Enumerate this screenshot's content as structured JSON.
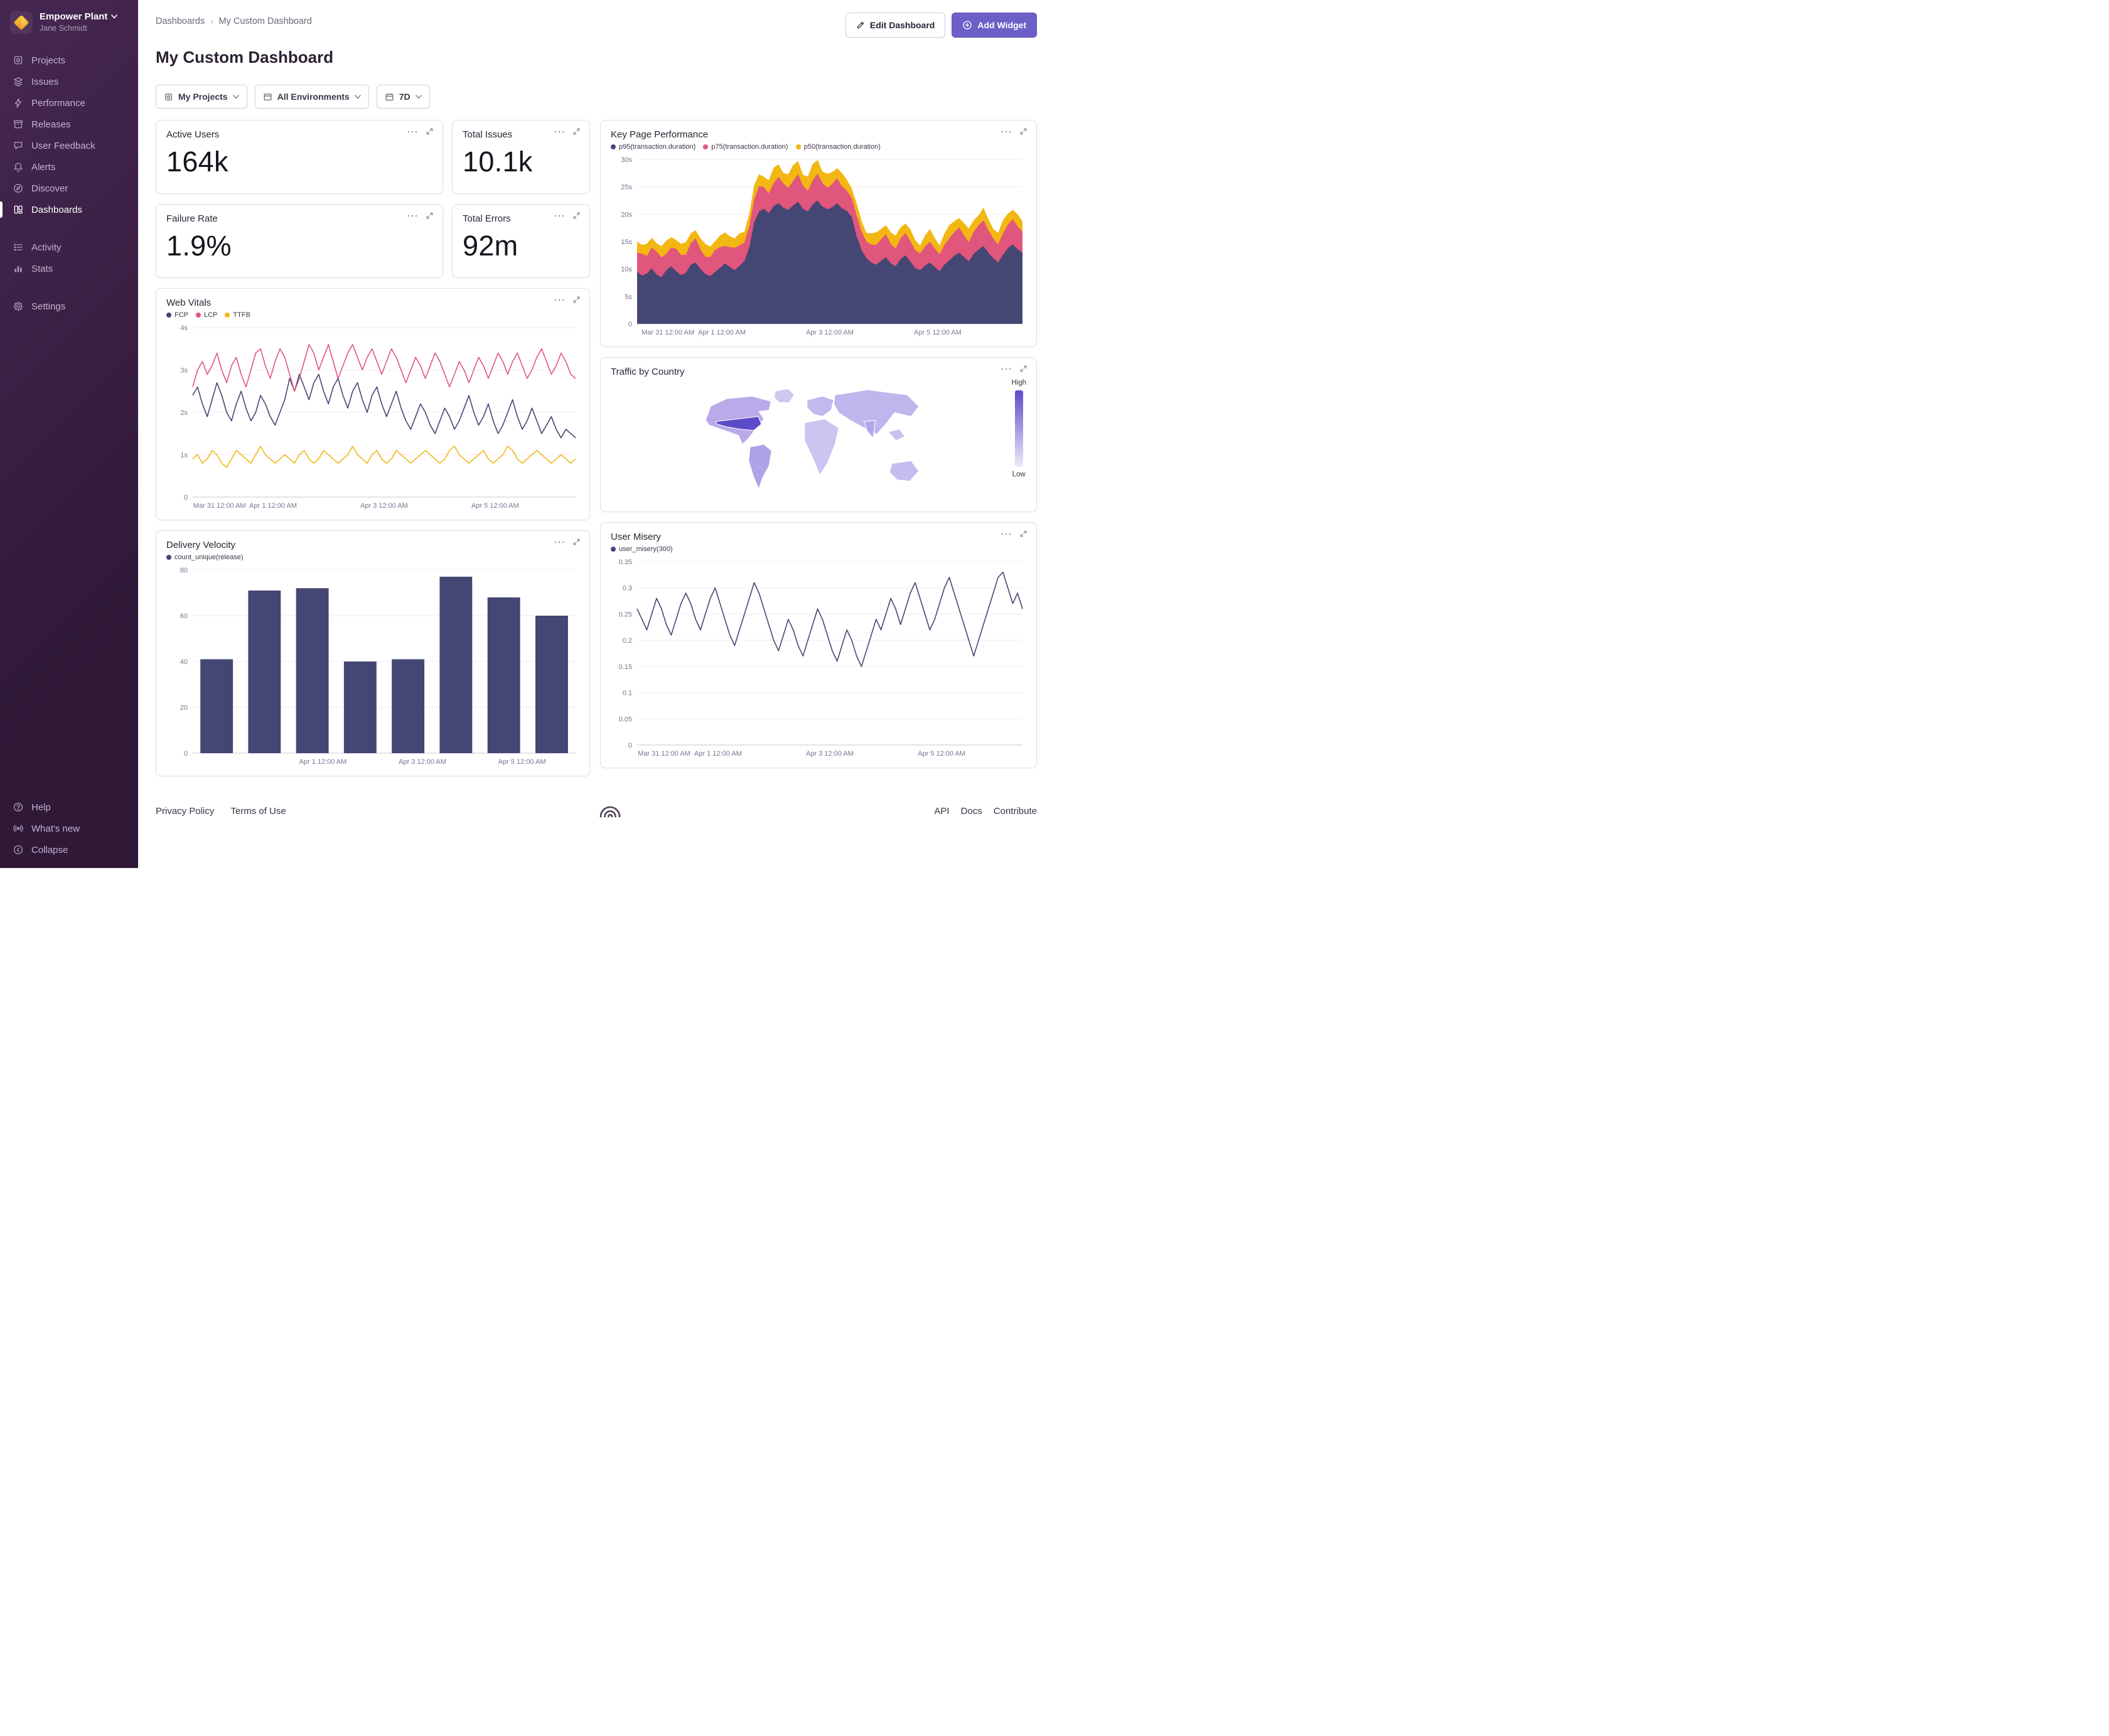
{
  "org": {
    "name": "Empower Plant",
    "user": "Jane Schmidt"
  },
  "sidebar": {
    "items": [
      {
        "label": "Projects"
      },
      {
        "label": "Issues"
      },
      {
        "label": "Performance"
      },
      {
        "label": "Releases"
      },
      {
        "label": "User Feedback"
      },
      {
        "label": "Alerts"
      },
      {
        "label": "Discover"
      },
      {
        "label": "Dashboards"
      },
      {
        "label": "Activity"
      },
      {
        "label": "Stats"
      },
      {
        "label": "Settings"
      }
    ],
    "footer_items": [
      {
        "label": "Help"
      },
      {
        "label": "What's new"
      },
      {
        "label": "Collapse"
      }
    ]
  },
  "header": {
    "breadcrumb_root": "Dashboards",
    "breadcrumb_current": "My Custom Dashboard",
    "title": "My Custom Dashboard",
    "edit_button": "Edit Dashboard",
    "add_widget_button": "Add Widget"
  },
  "filters": {
    "projects": "My Projects",
    "environments": "All Environments",
    "period": "7D"
  },
  "stats": [
    {
      "title": "Active Users",
      "value": "164k"
    },
    {
      "title": "Total Issues",
      "value": "10.1k"
    },
    {
      "title": "Failure Rate",
      "value": "1.9%"
    },
    {
      "title": "Total Errors",
      "value": "92m"
    }
  ],
  "footer": {
    "privacy": "Privacy Policy",
    "terms": "Terms of Use",
    "api": "API",
    "docs": "Docs",
    "contribute": "Contribute"
  },
  "colors": {
    "accent": "#6c5fc7",
    "navy": "#444674",
    "pink": "#e1567c",
    "yellow": "#f2b712"
  },
  "chart_data": [
    {
      "id": "key_page_performance",
      "type": "area-stacked",
      "title": "Key Page Performance",
      "ylim": [
        0,
        30
      ],
      "yticks": [
        {
          "v": 0,
          "label": "0"
        },
        {
          "v": 5,
          "label": "5s"
        },
        {
          "v": 10,
          "label": "10s"
        },
        {
          "v": 15,
          "label": "15s"
        },
        {
          "v": 20,
          "label": "20s"
        },
        {
          "v": 25,
          "label": "25s"
        },
        {
          "v": 30,
          "label": "30s"
        }
      ],
      "xticks": [
        {
          "pos": 0.08,
          "label": "Mar 31 12:00 AM"
        },
        {
          "pos": 0.22,
          "label": "Apr 1 12:00 AM"
        },
        {
          "pos": 0.5,
          "label": "Apr 3 12:00 AM"
        },
        {
          "pos": 0.78,
          "label": "Apr 5 12:00 AM"
        }
      ],
      "series": [
        {
          "name": "p95(transaction.duration)",
          "color": "#444674",
          "values": [
            9.5,
            8.8,
            9.2,
            10.1,
            9.0,
            8.5,
            9.8,
            10.5,
            9.6,
            8.9,
            9.3,
            10.8,
            11.2,
            10.0,
            9.1,
            8.7,
            9.5,
            10.2,
            11.0,
            10.4,
            9.8,
            10.6,
            11.5,
            14.0,
            18.5,
            20.5,
            21.0,
            20.2,
            21.5,
            22.0,
            21.2,
            20.8,
            21.6,
            22.3,
            21.0,
            20.5,
            21.8,
            22.5,
            21.4,
            20.9,
            21.3,
            22.0,
            21.1,
            20.6,
            19.5,
            16.0,
            13.5,
            12.0,
            11.2,
            10.8,
            11.5,
            12.2,
            11.0,
            10.5,
            11.8,
            12.5,
            11.4,
            10.2,
            9.8,
            10.6,
            11.2,
            10.4,
            9.6,
            10.8,
            11.6,
            12.4,
            13.0,
            12.2,
            11.4,
            12.8,
            13.6,
            14.2,
            13.0,
            12.0,
            11.2,
            12.6,
            13.8,
            14.5,
            13.6,
            13.0
          ]
        },
        {
          "name": "p75(transaction.duration)",
          "color": "#e1567c",
          "values": [
            3.5,
            4.0,
            3.2,
            3.8,
            4.2,
            3.6,
            3.0,
            3.4,
            4.1,
            3.7,
            3.3,
            3.9,
            4.4,
            3.6,
            3.1,
            3.5,
            4.0,
            3.8,
            3.2,
            3.6,
            4.1,
            3.7,
            3.4,
            3.8,
            4.2,
            4.6,
            4.0,
            3.6,
            4.2,
            4.8,
            4.4,
            4.0,
            4.5,
            5.0,
            4.2,
            3.8,
            4.4,
            4.9,
            4.3,
            3.9,
            4.2,
            4.6,
            4.0,
            3.7,
            3.5,
            3.8,
            3.4,
            3.0,
            3.3,
            3.6,
            3.9,
            4.2,
            3.6,
            3.2,
            3.8,
            4.1,
            3.7,
            3.3,
            3.0,
            3.5,
            3.8,
            3.4,
            3.1,
            3.6,
            4.0,
            4.3,
            4.6,
            4.0,
            3.5,
            4.0,
            4.4,
            4.7,
            4.1,
            3.6,
            3.3,
            3.9,
            4.3,
            4.6,
            4.2,
            3.8
          ]
        },
        {
          "name": "p50(transaction.duration)",
          "color": "#f2b712",
          "values": [
            2.0,
            1.6,
            2.2,
            1.8,
            1.5,
            2.1,
            2.4,
            1.9,
            1.6,
            2.0,
            2.3,
            1.8,
            1.5,
            2.0,
            2.4,
            1.9,
            1.6,
            2.1,
            2.5,
            2.0,
            1.7,
            2.2,
            1.9,
            2.3,
            2.6,
            2.2,
            1.8,
            2.4,
            2.8,
            2.3,
            1.9,
            2.5,
            2.9,
            2.4,
            2.0,
            2.6,
            3.0,
            2.5,
            2.1,
            2.6,
            2.2,
            1.8,
            2.4,
            2.0,
            1.7,
            2.2,
            1.9,
            1.6,
            2.0,
            2.3,
            1.9,
            1.6,
            2.1,
            2.4,
            2.0,
            1.7,
            2.2,
            1.8,
            1.5,
            2.0,
            2.3,
            1.9,
            1.6,
            2.1,
            2.4,
            2.0,
            1.7,
            2.2,
            2.5,
            2.1,
            1.8,
            2.3,
            2.0,
            1.7,
            2.1,
            2.4,
            2.0,
            1.7,
            2.2,
            1.9
          ]
        }
      ]
    },
    {
      "id": "web_vitals",
      "type": "line",
      "title": "Web Vitals",
      "ylim": [
        0,
        4
      ],
      "yticks": [
        {
          "v": 0,
          "label": "0"
        },
        {
          "v": 1,
          "label": "1s"
        },
        {
          "v": 2,
          "label": "2s"
        },
        {
          "v": 3,
          "label": "3s"
        },
        {
          "v": 4,
          "label": "4s"
        }
      ],
      "xticks": [
        {
          "pos": 0.07,
          "label": "Mar 31 12:00 AM"
        },
        {
          "pos": 0.21,
          "label": "Apr 1 12:00 AM"
        },
        {
          "pos": 0.5,
          "label": "Apr 3 12:00 AM"
        },
        {
          "pos": 0.79,
          "label": "Apr 5 12:00 AM"
        }
      ],
      "series": [
        {
          "name": "FCP",
          "color": "#444674",
          "values": [
            2.4,
            2.6,
            2.2,
            1.9,
            2.3,
            2.7,
            2.4,
            2.0,
            1.8,
            2.2,
            2.5,
            2.1,
            1.8,
            2.0,
            2.4,
            2.2,
            1.9,
            1.7,
            2.0,
            2.3,
            2.8,
            2.5,
            2.9,
            2.6,
            2.3,
            2.7,
            2.9,
            2.5,
            2.2,
            2.6,
            2.8,
            2.4,
            2.1,
            2.5,
            2.7,
            2.3,
            2.0,
            2.4,
            2.6,
            2.2,
            1.9,
            2.2,
            2.5,
            2.1,
            1.8,
            1.6,
            1.9,
            2.2,
            2.0,
            1.7,
            1.5,
            1.8,
            2.1,
            1.9,
            1.6,
            1.8,
            2.1,
            2.4,
            2.0,
            1.7,
            1.9,
            2.2,
            1.8,
            1.5,
            1.7,
            2.0,
            2.3,
            1.9,
            1.6,
            1.8,
            2.1,
            1.8,
            1.5,
            1.7,
            1.9,
            1.6,
            1.4,
            1.6,
            1.5,
            1.4
          ]
        },
        {
          "name": "LCP",
          "color": "#e1567c",
          "values": [
            2.6,
            3.0,
            3.2,
            2.9,
            3.1,
            3.4,
            3.0,
            2.7,
            3.1,
            3.3,
            2.9,
            2.6,
            3.0,
            3.4,
            3.5,
            3.1,
            2.8,
            3.2,
            3.5,
            3.3,
            2.9,
            2.5,
            2.8,
            3.2,
            3.6,
            3.4,
            3.0,
            3.3,
            3.6,
            3.2,
            2.8,
            3.1,
            3.4,
            3.6,
            3.3,
            3.0,
            3.3,
            3.5,
            3.2,
            2.9,
            3.2,
            3.5,
            3.3,
            3.0,
            2.7,
            3.0,
            3.3,
            3.1,
            2.8,
            3.1,
            3.4,
            3.2,
            2.9,
            2.6,
            2.9,
            3.2,
            3.0,
            2.7,
            3.0,
            3.3,
            3.1,
            2.8,
            3.1,
            3.4,
            3.2,
            2.9,
            3.2,
            3.4,
            3.1,
            2.8,
            3.0,
            3.3,
            3.5,
            3.2,
            2.9,
            3.1,
            3.4,
            3.2,
            2.9,
            2.8
          ]
        },
        {
          "name": "TTFB",
          "color": "#f2b712",
          "values": [
            0.9,
            1.0,
            0.8,
            0.9,
            1.1,
            1.0,
            0.8,
            0.7,
            0.9,
            1.1,
            1.0,
            0.9,
            0.8,
            1.0,
            1.2,
            1.0,
            0.9,
            0.8,
            0.9,
            1.0,
            0.9,
            0.8,
            1.0,
            1.1,
            0.9,
            0.8,
            0.9,
            1.1,
            1.0,
            0.9,
            0.8,
            0.9,
            1.0,
            1.2,
            1.0,
            0.9,
            0.8,
            1.0,
            1.1,
            0.9,
            0.8,
            0.9,
            1.1,
            1.0,
            0.9,
            0.8,
            0.9,
            1.0,
            1.1,
            1.0,
            0.9,
            0.8,
            0.9,
            1.1,
            1.2,
            1.0,
            0.9,
            0.8,
            0.9,
            1.0,
            1.1,
            0.9,
            0.8,
            0.9,
            1.0,
            1.2,
            1.1,
            0.9,
            0.8,
            0.9,
            1.0,
            1.1,
            1.0,
            0.9,
            0.8,
            0.9,
            1.0,
            0.9,
            0.8,
            0.9
          ]
        }
      ]
    },
    {
      "id": "traffic_by_country",
      "type": "choropleth",
      "title": "Traffic by Country",
      "legend": {
        "high": "High",
        "low": "Low"
      },
      "highlight": "United States"
    },
    {
      "id": "delivery_velocity",
      "type": "bar",
      "title": "Delivery Velocity",
      "ylim": [
        0,
        80
      ],
      "yticks": [
        {
          "v": 0,
          "label": "0"
        },
        {
          "v": 20,
          "label": "20"
        },
        {
          "v": 40,
          "label": "40"
        },
        {
          "v": 60,
          "label": "60"
        },
        {
          "v": 80,
          "label": "80"
        }
      ],
      "xticks": [
        {
          "pos": 0.34,
          "label": "Apr 1 12:00 AM"
        },
        {
          "pos": 0.6,
          "label": "Apr 3 12:00 AM"
        },
        {
          "pos": 0.86,
          "label": "Apr 5 12:00 AM"
        }
      ],
      "series": [
        {
          "name": "count_unique(release)",
          "color": "#444674",
          "values": [
            41,
            71,
            72,
            40,
            41,
            77,
            68,
            60
          ]
        }
      ]
    },
    {
      "id": "user_misery",
      "type": "line",
      "title": "User Misery",
      "ylim": [
        0,
        0.35
      ],
      "yticks": [
        {
          "v": 0,
          "label": "0"
        },
        {
          "v": 0.05,
          "label": "0.05"
        },
        {
          "v": 0.1,
          "label": "0.1"
        },
        {
          "v": 0.15,
          "label": "0.15"
        },
        {
          "v": 0.2,
          "label": "0.2"
        },
        {
          "v": 0.25,
          "label": "0.25"
        },
        {
          "v": 0.3,
          "label": "0.3"
        },
        {
          "v": 0.35,
          "label": "0.35"
        }
      ],
      "xticks": [
        {
          "pos": 0.07,
          "label": "Mar 31 12:00 AM"
        },
        {
          "pos": 0.21,
          "label": "Apr 1 12:00 AM"
        },
        {
          "pos": 0.5,
          "label": "Apr 3 12:00 AM"
        },
        {
          "pos": 0.79,
          "label": "Apr 5 12:00 AM"
        }
      ],
      "series": [
        {
          "name": "user_misery(300)",
          "color": "#444674",
          "values": [
            0.26,
            0.24,
            0.22,
            0.25,
            0.28,
            0.26,
            0.23,
            0.21,
            0.24,
            0.27,
            0.29,
            0.27,
            0.24,
            0.22,
            0.25,
            0.28,
            0.3,
            0.27,
            0.24,
            0.21,
            0.19,
            0.22,
            0.25,
            0.28,
            0.31,
            0.29,
            0.26,
            0.23,
            0.2,
            0.18,
            0.21,
            0.24,
            0.22,
            0.19,
            0.17,
            0.2,
            0.23,
            0.26,
            0.24,
            0.21,
            0.18,
            0.16,
            0.19,
            0.22,
            0.2,
            0.17,
            0.15,
            0.18,
            0.21,
            0.24,
            0.22,
            0.25,
            0.28,
            0.26,
            0.23,
            0.26,
            0.29,
            0.31,
            0.28,
            0.25,
            0.22,
            0.24,
            0.27,
            0.3,
            0.32,
            0.29,
            0.26,
            0.23,
            0.2,
            0.17,
            0.2,
            0.23,
            0.26,
            0.29,
            0.32,
            0.33,
            0.3,
            0.27,
            0.29,
            0.26
          ]
        }
      ]
    }
  ]
}
